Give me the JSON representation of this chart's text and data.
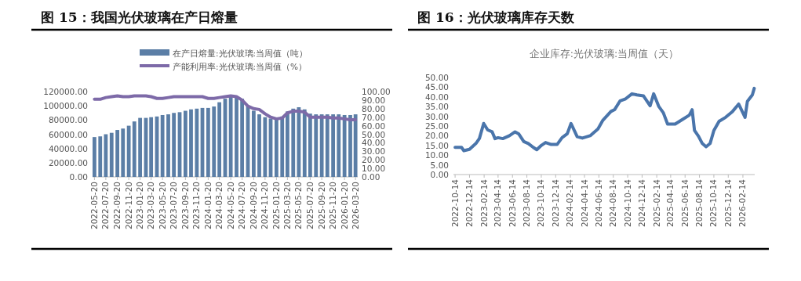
{
  "chart_data": [
    {
      "type": "bar",
      "title": "图 15：我国光伏玻璃在产日熔量",
      "x": [
        "2022-05-20",
        "2022-06-20",
        "2022-07-20",
        "2022-08-20",
        "2022-09-20",
        "2022-10-20",
        "2022-11-20",
        "2022-12-20",
        "2023-01-20",
        "2023-02-20",
        "2023-03-20",
        "2023-04-20",
        "2023-05-20",
        "2023-06-20",
        "2023-07-20",
        "2023-08-20",
        "2023-09-20",
        "2023-10-20",
        "2023-11-20",
        "2023-12-20",
        "2024-01-20",
        "2024-02-20",
        "2024-03-20",
        "2024-04-20",
        "2024-05-20",
        "2024-06-20",
        "2024-07-20",
        "2024-08-20",
        "2024-09-20",
        "2024-10-20",
        "2024-11-20",
        "2024-12-20",
        "2025-01-20",
        "2025-02-20",
        "2025-03-20",
        "2025-04-20",
        "2025-05-20",
        "2025-06-20",
        "2025-07-20",
        "2025-08-20",
        "2025-09-20",
        "2025-10-20",
        "2025-11-20",
        "2025-12-20",
        "2026-01-20",
        "2026-02-20",
        "2026-03-20"
      ],
      "series": [
        {
          "name": "在产日熔量:光伏玻璃:当周值（吨）",
          "color": "#5b7ea6",
          "values": [
            56000,
            57000,
            60000,
            62000,
            66000,
            68000,
            72000,
            78000,
            83000,
            83000,
            84000,
            85000,
            87000,
            88000,
            90000,
            91000,
            93000,
            95000,
            96000,
            97000,
            97000,
            99000,
            105000,
            110000,
            114000,
            113000,
            110000,
            100000,
            93000,
            88000,
            84000,
            82000,
            82000,
            85000,
            92000,
            96000,
            98000,
            95000,
            89000,
            88000,
            88000,
            88000,
            88000,
            88000,
            87000,
            87000,
            88000
          ]
        },
        {
          "name": "产能利用率:光伏玻璃:当周值（%）",
          "type": "line",
          "axis": "y2",
          "color": "#7d6aa8",
          "values": [
            91,
            91,
            93,
            94,
            95,
            94,
            94,
            95,
            95,
            95,
            94,
            92,
            92,
            93,
            94,
            94,
            94,
            94,
            94,
            94,
            92,
            92,
            93,
            94,
            95,
            94,
            90,
            83,
            80,
            79,
            74,
            70,
            68,
            69,
            75,
            77,
            77,
            76,
            70,
            70,
            70,
            70,
            69,
            69,
            68,
            67,
            67
          ]
        }
      ],
      "xlim": [
        "2022-05-10",
        "2026-04-01"
      ],
      "xticks": [
        {
          "value": "2022-05-20",
          "label": "2022-05-20"
        },
        {
          "value": "2022-07-20",
          "label": "2022-07-20"
        },
        {
          "value": "2022-09-20",
          "label": "2022-09-20"
        },
        {
          "value": "2022-11-20",
          "label": "2022-11-20"
        },
        {
          "value": "2023-01-20",
          "label": "2023-01-20"
        },
        {
          "value": "2023-03-20",
          "label": "2023-03-20"
        },
        {
          "value": "2023-05-20",
          "label": "2023-05-20"
        },
        {
          "value": "2023-07-20",
          "label": "2023-07-20"
        },
        {
          "value": "2023-09-20",
          "label": "2023-09-20"
        },
        {
          "value": "2023-11-20",
          "label": "2023-11-20"
        },
        {
          "value": "2024-01-20",
          "label": "2024-01-20"
        },
        {
          "value": "2024-03-20",
          "label": "2024-03-20"
        },
        {
          "value": "2024-05-20",
          "label": "2024-05-20"
        },
        {
          "value": "2024-07-20",
          "label": "2024-07-20"
        },
        {
          "value": "2024-09-20",
          "label": "2024-09-20"
        },
        {
          "value": "2024-11-20",
          "label": "2024-11-20"
        },
        {
          "value": "2025-01-20",
          "label": "2025-01-20"
        },
        {
          "value": "2025-03-20",
          "label": "2025-03-20"
        },
        {
          "value": "2025-05-20",
          "label": "2025-05-20"
        },
        {
          "value": "2025-07-20",
          "label": "2025-07-20"
        },
        {
          "value": "2025-09-20",
          "label": "2025-09-20"
        },
        {
          "value": "2025-11-20",
          "label": "2025-11-20"
        },
        {
          "value": "2026-01-20",
          "label": "2026-01-20"
        },
        {
          "value": "2026-03-20",
          "label": "2026-03-20"
        }
      ],
      "ylim": [
        0,
        120000
      ],
      "yticks": [
        {
          "value": 0,
          "label": "0.00"
        },
        {
          "value": 20000,
          "label": "20000.00"
        },
        {
          "value": 40000,
          "label": "40000.00"
        },
        {
          "value": 60000,
          "label": "60000.00"
        },
        {
          "value": 80000,
          "label": "80000.00"
        },
        {
          "value": 100000,
          "label": "100000.00"
        },
        {
          "value": 120000,
          "label": "120000.00"
        }
      ],
      "y2lim": [
        0,
        100
      ],
      "y2ticks": [
        {
          "value": 0,
          "label": "0.00"
        },
        {
          "value": 10,
          "label": "10.00"
        },
        {
          "value": 20,
          "label": "20.00"
        },
        {
          "value": 30,
          "label": "30.00"
        },
        {
          "value": 40,
          "label": "40.00"
        },
        {
          "value": 50,
          "label": "50.00"
        },
        {
          "value": 60,
          "label": "60.00"
        },
        {
          "value": 70,
          "label": "70.00"
        },
        {
          "value": 80,
          "label": "80.00"
        },
        {
          "value": 90,
          "label": "90.00"
        },
        {
          "value": 100,
          "label": "100.00"
        }
      ],
      "legend": "top"
    },
    {
      "type": "line",
      "title": "图 16：光伏玻璃库存天数",
      "subtitle": "企业库存:光伏玻璃:当周值（天）",
      "color": "#4a75ab",
      "x": [
        "2022-10-14",
        "2022-11-10",
        "2022-11-20",
        "2022-12-14",
        "2023-01-10",
        "2023-01-25",
        "2023-02-12",
        "2023-03-01",
        "2023-03-20",
        "2023-04-01",
        "2023-04-14",
        "2023-05-04",
        "2023-06-01",
        "2023-06-25",
        "2023-07-10",
        "2023-08-01",
        "2023-08-20",
        "2023-09-10",
        "2023-09-25",
        "2023-10-14",
        "2023-11-01",
        "2023-11-25",
        "2023-12-20",
        "2024-01-10",
        "2024-02-01",
        "2024-02-17",
        "2024-03-14",
        "2024-04-05",
        "2024-05-08",
        "2024-06-10",
        "2024-07-01",
        "2024-08-04",
        "2024-08-20",
        "2024-09-12",
        "2024-10-05",
        "2024-11-01",
        "2024-11-22",
        "2024-12-20",
        "2025-01-17",
        "2025-02-01",
        "2025-02-23",
        "2025-03-14",
        "2025-04-01",
        "2025-05-03",
        "2025-06-05",
        "2025-07-02",
        "2025-07-14",
        "2025-07-24",
        "2025-08-10",
        "2025-08-26",
        "2025-09-11",
        "2025-09-28",
        "2025-10-14",
        "2025-11-05",
        "2025-12-03",
        "2026-01-01",
        "2026-01-27",
        "2026-02-23",
        "2026-03-05",
        "2026-03-26",
        "2026-04-03"
      ],
      "values": [
        14,
        14,
        12.3,
        13,
        16,
        18.6,
        26.3,
        23,
        22,
        18.5,
        19,
        18.5,
        20,
        22,
        21,
        17,
        16,
        14,
        12.8,
        15,
        16.5,
        15.5,
        15.5,
        19,
        21,
        26.3,
        19.5,
        18.8,
        20,
        23.5,
        28,
        32.5,
        33.5,
        38,
        39,
        41.6,
        41,
        40.5,
        35.4,
        41.6,
        35,
        31.8,
        26,
        26,
        28.5,
        30.6,
        33.4,
        22.7,
        19.7,
        16,
        14.3,
        16,
        22.7,
        27.4,
        29.5,
        32.5,
        36.3,
        29.5,
        37.7,
        41,
        44.4
      ],
      "xlim": [
        "2022-10-07",
        "2026-04-05"
      ],
      "xticks": [
        {
          "value": "2022-10-14",
          "label": "2022-10-14"
        },
        {
          "value": "2022-12-14",
          "label": "2022-12-14"
        },
        {
          "value": "2023-02-14",
          "label": "2023-02-14"
        },
        {
          "value": "2023-04-14",
          "label": "2023-04-14"
        },
        {
          "value": "2023-06-14",
          "label": "2023-06-14"
        },
        {
          "value": "2023-08-14",
          "label": "2023-08-14"
        },
        {
          "value": "2023-10-14",
          "label": "2023-10-14"
        },
        {
          "value": "2023-12-14",
          "label": "2023-12-14"
        },
        {
          "value": "2024-02-14",
          "label": "2024-02-14"
        },
        {
          "value": "2024-04-14",
          "label": "2024-04-14"
        },
        {
          "value": "2024-06-14",
          "label": "2024-06-14"
        },
        {
          "value": "2024-08-14",
          "label": "2024-08-14"
        },
        {
          "value": "2024-10-14",
          "label": "2024-10-14"
        },
        {
          "value": "2024-12-14",
          "label": "2024-12-14"
        },
        {
          "value": "2025-02-14",
          "label": "2025-02-14"
        },
        {
          "value": "2025-04-14",
          "label": "2025-04-14"
        },
        {
          "value": "2025-06-14",
          "label": "2025-06-14"
        },
        {
          "value": "2025-08-14",
          "label": "2025-08-14"
        },
        {
          "value": "2025-10-14",
          "label": "2025-10-14"
        },
        {
          "value": "2025-12-14",
          "label": "2025-12-14"
        },
        {
          "value": "2026-02-14",
          "label": "2026-02-14"
        }
      ],
      "ylim": [
        0,
        50
      ],
      "yticks": [
        {
          "value": 0,
          "label": "0.00"
        },
        {
          "value": 5,
          "label": "5.00"
        },
        {
          "value": 10,
          "label": "10.00"
        },
        {
          "value": 15,
          "label": "15.00"
        },
        {
          "value": 20,
          "label": "20.00"
        },
        {
          "value": 25,
          "label": "25.00"
        },
        {
          "value": 30,
          "label": "30.00"
        },
        {
          "value": 35,
          "label": "35.00"
        },
        {
          "value": 40,
          "label": "40.00"
        },
        {
          "value": 45,
          "label": "45.00"
        },
        {
          "value": 50,
          "label": "50.00"
        }
      ]
    }
  ]
}
